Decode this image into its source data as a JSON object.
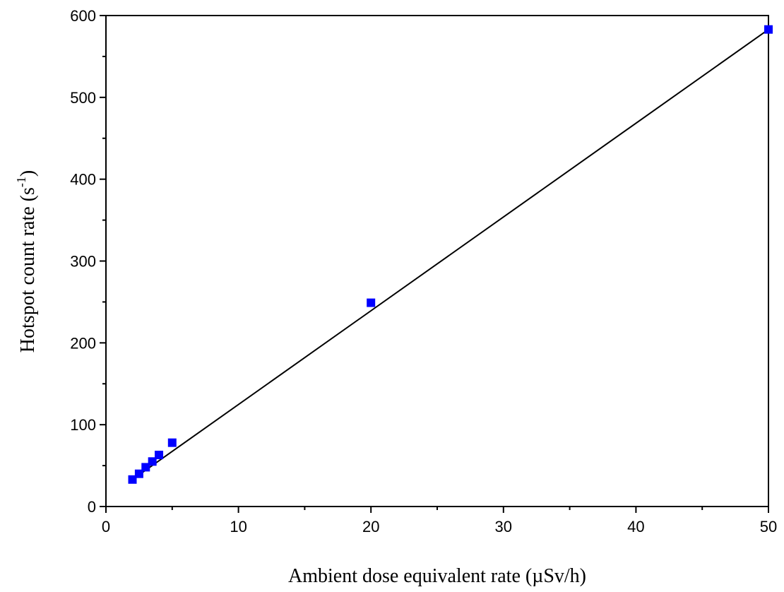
{
  "chart_data": {
    "type": "scatter",
    "title": "",
    "xlabel": "Ambient dose equivalent rate (µSv/h)",
    "ylabel_main": "Hotspot count rate (s",
    "ylabel_sup": "-1",
    "ylabel_close": ")",
    "xlim": [
      0,
      50
    ],
    "ylim": [
      0,
      600
    ],
    "x_ticks": [
      0,
      10,
      20,
      30,
      40,
      50
    ],
    "y_ticks": [
      0,
      100,
      200,
      300,
      400,
      500,
      600
    ],
    "grid": false,
    "legend": "none",
    "marker_color": "#0000ff",
    "line_color": "#000000",
    "series": [
      {
        "marker": "square",
        "x": [
          2,
          2.5,
          3,
          3.5,
          4,
          5,
          20,
          50
        ],
        "y": [
          33,
          40,
          48,
          55,
          63,
          78,
          249,
          583
        ]
      }
    ],
    "fit_line": {
      "x": [
        2,
        50
      ],
      "y": [
        33,
        583
      ]
    }
  }
}
